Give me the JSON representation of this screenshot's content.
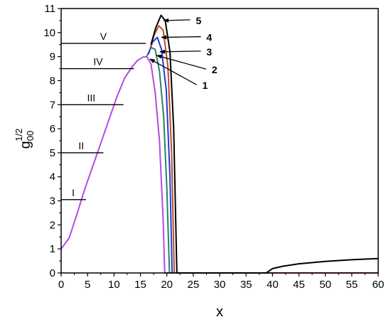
{
  "chart_data": {
    "type": "line",
    "title": "",
    "xlabel": "x",
    "ylabel_base": "g",
    "ylabel_sub": "00",
    "ylabel_sup": "1/2",
    "xlim": [
      0,
      60
    ],
    "ylim": [
      0,
      11
    ],
    "xticks": [
      0,
      5,
      10,
      15,
      20,
      25,
      30,
      35,
      40,
      45,
      50,
      55,
      60
    ],
    "yticks": [
      0,
      1,
      2,
      3,
      4,
      5,
      6,
      7,
      8,
      9,
      10,
      11
    ],
    "grid": false,
    "series": [
      {
        "name": "1",
        "color": "#b44be0",
        "x": [
          0,
          1.5,
          3,
          4.5,
          6,
          7.5,
          9,
          10.5,
          12,
          13.5,
          14.5,
          15.5,
          16.2,
          17.0,
          17.8,
          18.6,
          19.3,
          19.6,
          20,
          60
        ],
        "y": [
          1.0,
          1.45,
          2.45,
          3.5,
          4.45,
          5.4,
          6.35,
          7.3,
          8.1,
          8.6,
          8.85,
          8.98,
          9.0,
          8.7,
          7.5,
          5.5,
          2.2,
          0,
          0,
          0
        ]
      },
      {
        "name": "2",
        "color": "#2e7d6b",
        "x": [
          16.2,
          17.0,
          17.8,
          18.6,
          19.4,
          20.0,
          20.5,
          60
        ],
        "y": [
          9.0,
          9.38,
          9.3,
          8.4,
          6.5,
          3.5,
          0,
          0
        ]
      },
      {
        "name": "3",
        "color": "#1a3fd6",
        "x": [
          16.5,
          17.3,
          18.2,
          19.0,
          19.9,
          20.6,
          21.0,
          60
        ],
        "y": [
          9.1,
          9.6,
          9.8,
          9.3,
          7.6,
          4.0,
          0,
          0
        ]
      },
      {
        "name": "4",
        "color": "#c0482e",
        "x": [
          16.8,
          17.6,
          18.5,
          19.3,
          20.2,
          20.9,
          21.4,
          60
        ],
        "y": [
          9.3,
          9.9,
          10.28,
          10.1,
          8.6,
          5.0,
          0,
          0
        ]
      },
      {
        "name": "5",
        "color": "#000000",
        "x": [
          17.0,
          17.9,
          18.9,
          19.7,
          20.6,
          21.3,
          21.9,
          38.8,
          40,
          42,
          45,
          50,
          55,
          60
        ],
        "y": [
          9.5,
          10.2,
          10.72,
          10.5,
          9.2,
          6.0,
          0,
          0,
          0.18,
          0.28,
          0.38,
          0.48,
          0.55,
          0.6
        ]
      }
    ],
    "reference_lines": [
      {
        "label": "I",
        "y": 3.05,
        "x_end": 4.7,
        "label_x": 2.3
      },
      {
        "label": "II",
        "y": 5.0,
        "x_end": 8.0,
        "label_x": 3.8
      },
      {
        "label": "III",
        "y": 7.0,
        "x_end": 11.8,
        "label_x": 5.7
      },
      {
        "label": "IV",
        "y": 8.5,
        "x_end": 13.8,
        "label_x": 7.0
      },
      {
        "label": "V",
        "y": 9.55,
        "x_end": 16.0,
        "label_x": 8.0
      }
    ],
    "arrow_labels": [
      {
        "label": "1",
        "label_x": 26.7,
        "label_y": 7.8,
        "tip_x": 16.8,
        "tip_y": 8.9
      },
      {
        "label": "2",
        "label_x": 28.5,
        "label_y": 8.45,
        "tip_x": 18.1,
        "tip_y": 9.05
      },
      {
        "label": "3",
        "label_x": 27.5,
        "label_y": 9.2,
        "tip_x": 18.7,
        "tip_y": 9.2
      },
      {
        "label": "4",
        "label_x": 27.5,
        "label_y": 9.8,
        "tip_x": 19.0,
        "tip_y": 9.8
      },
      {
        "label": "5",
        "label_x": 25.5,
        "label_y": 10.5,
        "tip_x": 19.4,
        "tip_y": 10.5
      }
    ]
  }
}
